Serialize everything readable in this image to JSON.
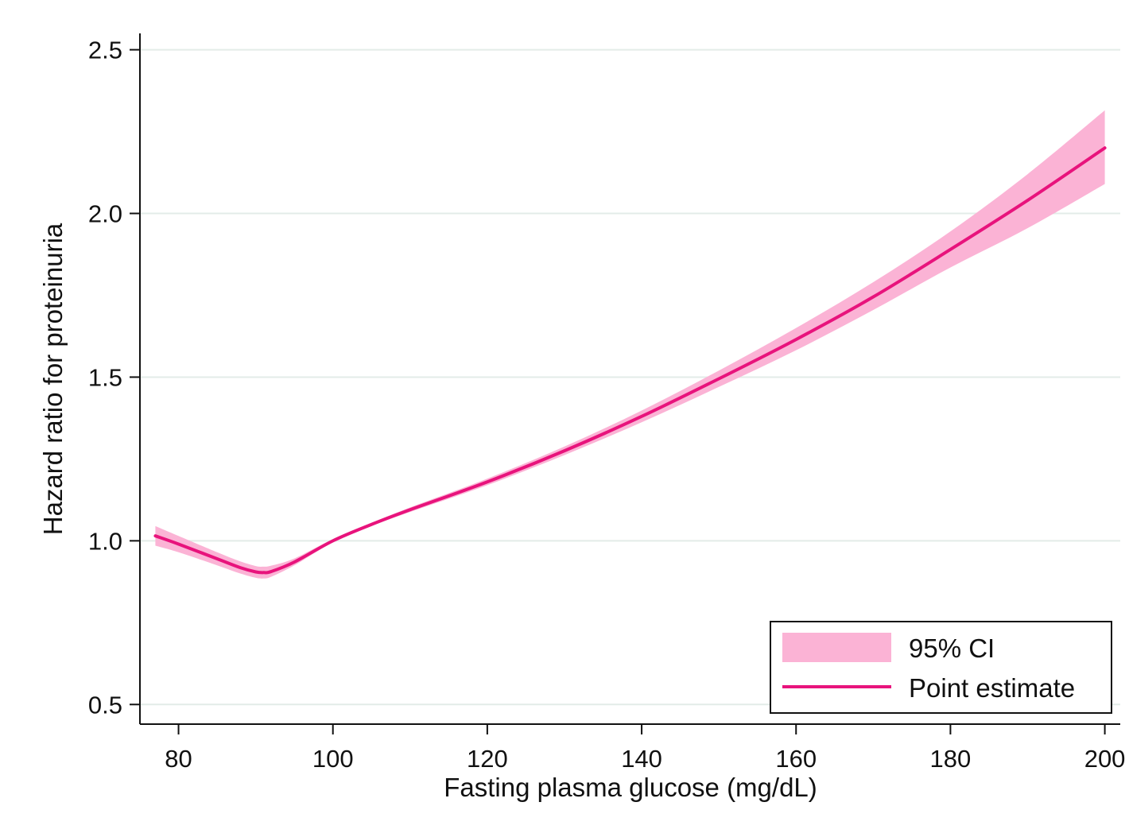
{
  "chart_data": {
    "type": "line",
    "title": "",
    "xlabel": "Fasting plasma glucose (mg/dL)",
    "ylabel": "Hazard ratio for proteinuria",
    "xlim": [
      75,
      202
    ],
    "ylim": [
      0.44,
      2.55
    ],
    "xticks": [
      {
        "value": 80,
        "label": "80"
      },
      {
        "value": 100,
        "label": "100"
      },
      {
        "value": 120,
        "label": "120"
      },
      {
        "value": 140,
        "label": "140"
      },
      {
        "value": 160,
        "label": "160"
      },
      {
        "value": 180,
        "label": "180"
      },
      {
        "value": 200,
        "label": "200"
      }
    ],
    "yticks": [
      {
        "value": 0.5,
        "label": "0.5"
      },
      {
        "value": 1.0,
        "label": "1.0"
      },
      {
        "value": 1.5,
        "label": "1.5"
      },
      {
        "value": 2.0,
        "label": "2.0"
      },
      {
        "value": 2.5,
        "label": "2.5"
      }
    ],
    "grid": "horizontal",
    "legend_position": "bottom-right",
    "colors": {
      "line": "#e8137c",
      "band": "#fbb3d5",
      "grid": "#e3ece8",
      "axis": "#111111"
    },
    "x": [
      77,
      80,
      85,
      88,
      90,
      91,
      92,
      95,
      100,
      105,
      110,
      120,
      130,
      140,
      150,
      160,
      170,
      180,
      190,
      200
    ],
    "series": [
      {
        "name": "Point estimate",
        "role": "line",
        "values": [
          1.015,
          0.99,
          0.945,
          0.918,
          0.905,
          0.903,
          0.906,
          0.935,
          1.0,
          1.05,
          1.095,
          1.18,
          1.275,
          1.38,
          1.495,
          1.615,
          1.745,
          1.89,
          2.04,
          2.2
        ]
      },
      {
        "name": "95% CI",
        "role": "band",
        "lower": [
          0.985,
          0.965,
          0.925,
          0.9,
          0.887,
          0.885,
          0.89,
          0.925,
          0.995,
          1.045,
          1.088,
          1.17,
          1.262,
          1.362,
          1.47,
          1.582,
          1.705,
          1.835,
          1.955,
          2.09
        ],
        "upper": [
          1.045,
          1.015,
          0.965,
          0.937,
          0.923,
          0.921,
          0.924,
          0.946,
          1.005,
          1.055,
          1.102,
          1.19,
          1.288,
          1.398,
          1.52,
          1.65,
          1.79,
          1.945,
          2.12,
          2.315
        ]
      }
    ],
    "legend": [
      {
        "label": "95% CI",
        "kind": "band"
      },
      {
        "label": "Point estimate",
        "kind": "line"
      }
    ]
  }
}
